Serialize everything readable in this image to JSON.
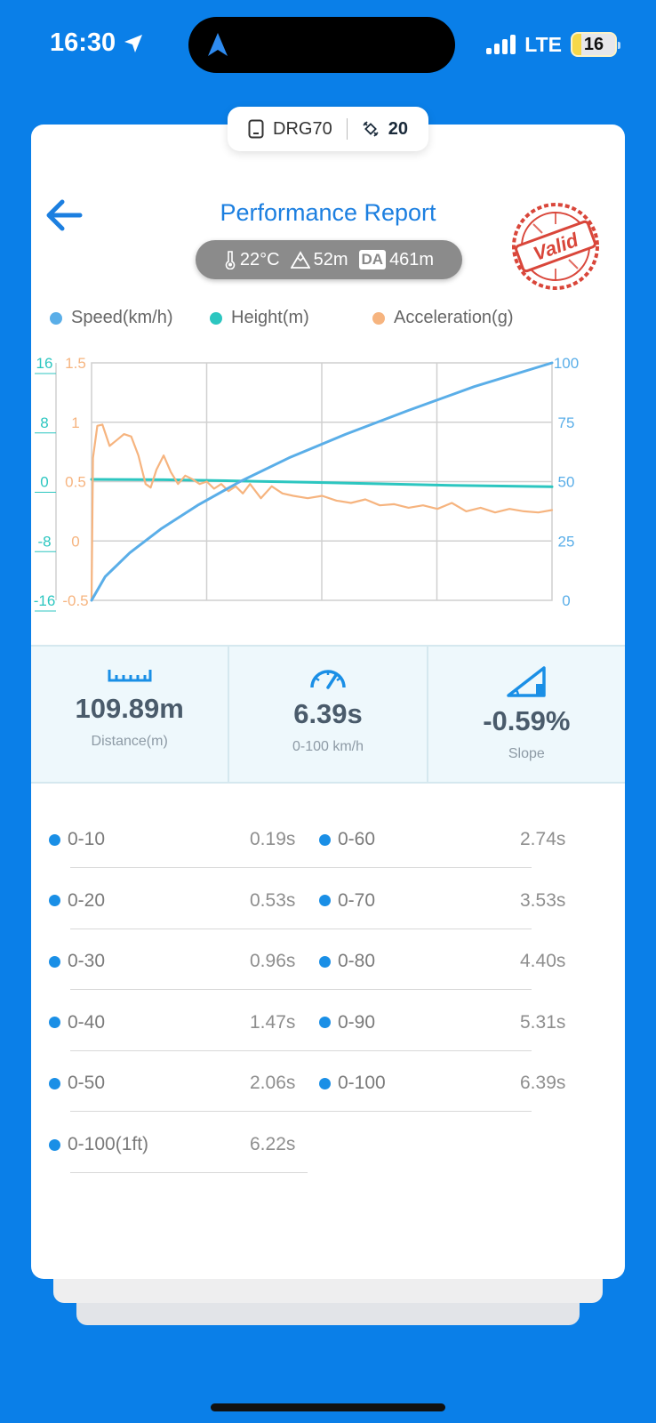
{
  "status_bar": {
    "time": "16:30",
    "network": "LTE",
    "battery": "16"
  },
  "device": {
    "name": "DRG70",
    "satellites": "20"
  },
  "header": {
    "title": "Performance Report",
    "stamp": "Valid"
  },
  "environment": {
    "temperature": "22°C",
    "altitude": "52m",
    "da_label": "DA",
    "density_altitude": "461m"
  },
  "legend": [
    {
      "label": "Speed(km/h)",
      "color": "#5aaee8"
    },
    {
      "label": "Height(m)",
      "color": "#2cc6c0"
    },
    {
      "label": "Acceleration(g)",
      "color": "#f6b47f"
    }
  ],
  "chart_data": {
    "type": "line",
    "axes": {
      "height_left": {
        "ticks": [
          "16",
          "8",
          "0",
          "-8",
          "-16"
        ],
        "range": [
          -16,
          16
        ],
        "color": "#2cc6c0"
      },
      "accel_left": {
        "ticks": [
          "1.5",
          "1",
          "0.5",
          "0",
          "-0.5"
        ],
        "range": [
          -0.5,
          1.5
        ],
        "color": "#f6b47f"
      },
      "speed_right": {
        "ticks": [
          "100",
          "75",
          "50",
          "25",
          "0"
        ],
        "range": [
          0,
          100
        ],
        "color": "#5aaee8"
      }
    },
    "grid": true,
    "x_range": [
      0,
      6.39
    ],
    "series": [
      {
        "name": "Speed(km/h)",
        "color": "#5aaee8",
        "x": [
          0,
          0.19,
          0.53,
          0.96,
          1.47,
          2.06,
          2.74,
          3.53,
          4.4,
          5.31,
          6.39
        ],
        "y": [
          0,
          10,
          20,
          30,
          40,
          50,
          60,
          70,
          80,
          90,
          100
        ]
      },
      {
        "name": "Height(m)",
        "color": "#2cc6c0",
        "x": [
          0,
          1,
          2,
          3,
          4,
          5,
          6.39
        ],
        "y": [
          0.3,
          0.25,
          0.1,
          -0.1,
          -0.3,
          -0.5,
          -0.7
        ]
      },
      {
        "name": "Acceleration(g)",
        "color": "#f6b47f",
        "x": [
          0,
          0.02,
          0.08,
          0.15,
          0.25,
          0.35,
          0.45,
          0.55,
          0.65,
          0.75,
          0.82,
          0.9,
          1.0,
          1.1,
          1.2,
          1.3,
          1.4,
          1.5,
          1.6,
          1.7,
          1.8,
          1.9,
          2.0,
          2.1,
          2.2,
          2.35,
          2.5,
          2.65,
          2.8,
          3.0,
          3.2,
          3.4,
          3.6,
          3.8,
          4.0,
          4.2,
          4.4,
          4.6,
          4.8,
          5.0,
          5.2,
          5.4,
          5.6,
          5.8,
          6.0,
          6.2,
          6.39
        ],
        "y": [
          -0.5,
          0.7,
          0.97,
          0.98,
          0.8,
          0.85,
          0.9,
          0.88,
          0.72,
          0.48,
          0.45,
          0.6,
          0.72,
          0.58,
          0.48,
          0.55,
          0.52,
          0.48,
          0.5,
          0.44,
          0.48,
          0.42,
          0.46,
          0.4,
          0.48,
          0.36,
          0.46,
          0.4,
          0.38,
          0.36,
          0.38,
          0.34,
          0.32,
          0.35,
          0.3,
          0.31,
          0.28,
          0.3,
          0.27,
          0.32,
          0.25,
          0.28,
          0.24,
          0.27,
          0.25,
          0.24,
          0.26
        ]
      }
    ]
  },
  "stats": [
    {
      "icon": "ruler-icon",
      "value": "109.89m",
      "label": "Distance(m)"
    },
    {
      "icon": "speedometer-icon",
      "value": "6.39s",
      "label": "0-100 km/h"
    },
    {
      "icon": "slope-icon",
      "value": "-0.59%",
      "label": "Slope"
    }
  ],
  "splits": {
    "left": [
      {
        "name": "0-10",
        "time": "0.19s"
      },
      {
        "name": "0-20",
        "time": "0.53s"
      },
      {
        "name": "0-30",
        "time": "0.96s"
      },
      {
        "name": "0-40",
        "time": "1.47s"
      },
      {
        "name": "0-50",
        "time": "2.06s"
      },
      {
        "name": "0-100(1ft)",
        "time": "6.22s"
      }
    ],
    "right": [
      {
        "name": "0-60",
        "time": "2.74s"
      },
      {
        "name": "0-70",
        "time": "3.53s"
      },
      {
        "name": "0-80",
        "time": "4.40s"
      },
      {
        "name": "0-90",
        "time": "5.31s"
      },
      {
        "name": "0-100",
        "time": "6.39s"
      }
    ]
  }
}
